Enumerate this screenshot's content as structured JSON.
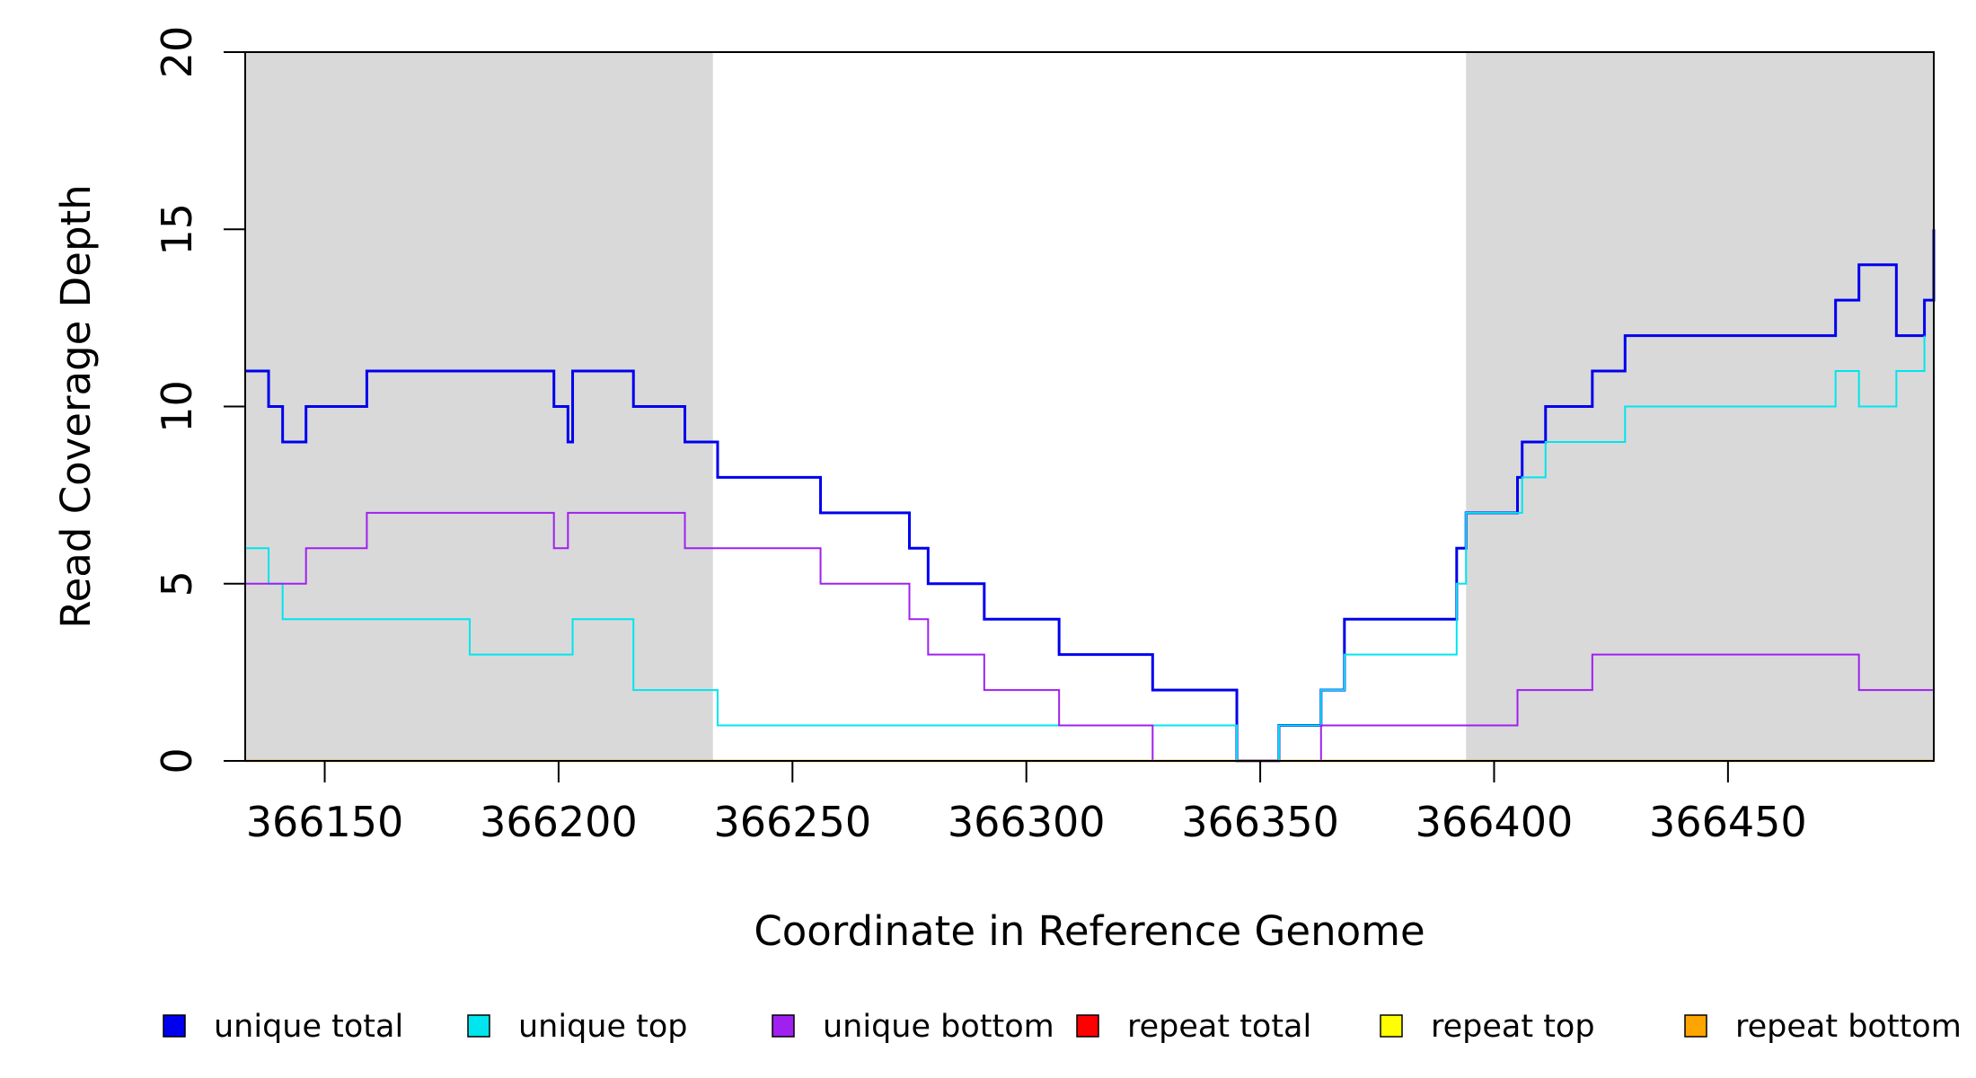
{
  "chart_data": {
    "type": "line",
    "xlabel": "Coordinate in Reference Genome",
    "ylabel": "Read Coverage Depth",
    "xlim": [
      366133,
      366494
    ],
    "ylim": [
      0,
      20
    ],
    "x_ticks": [
      366150,
      366200,
      366250,
      366300,
      366350,
      366400,
      366450
    ],
    "y_ticks": [
      0,
      5,
      10,
      15,
      20
    ],
    "grid": false,
    "shaded_regions": [
      {
        "from": 366133,
        "to": 366233,
        "color": "#d9d9d9"
      },
      {
        "from": 366394,
        "to": 366494,
        "color": "#d9d9d9"
      }
    ],
    "legend_position": "bottom",
    "series": [
      {
        "name": "unique total",
        "color": "#0000ee",
        "x": [
          366133,
          366138,
          366141,
          366146,
          366159,
          366181,
          366199,
          366202,
          366203,
          366216,
          366227,
          366234,
          366256,
          366275,
          366279,
          366291,
          366307,
          366327,
          366345,
          366354,
          366363,
          366368,
          366392,
          366394,
          366405,
          366406,
          366411,
          366421,
          366428,
          366473,
          366478,
          366486,
          366492,
          366494
        ],
        "values": [
          11,
          10,
          9,
          10,
          11,
          11,
          10,
          9,
          11,
          10,
          9,
          8,
          7,
          6,
          5,
          4,
          3,
          2,
          0,
          1,
          2,
          4,
          6,
          7,
          8,
          9,
          10,
          11,
          12,
          13,
          14,
          12,
          13,
          15
        ]
      },
      {
        "name": "unique top",
        "color": "#00e5ee",
        "x": [
          366133,
          366138,
          366141,
          366181,
          366202,
          366203,
          366216,
          366234,
          366327,
          366345,
          366354,
          366363,
          366368,
          366392,
          366394,
          366406,
          366411,
          366428,
          366473,
          366478,
          366486,
          366492
        ],
        "values": [
          6,
          5,
          4,
          3,
          3,
          4,
          2,
          1,
          1,
          0,
          1,
          2,
          3,
          5,
          7,
          8,
          9,
          10,
          11,
          10,
          11,
          12
        ]
      },
      {
        "name": "unique bottom",
        "color": "#a020f0",
        "x": [
          366133,
          366146,
          366159,
          366199,
          366202,
          366227,
          366256,
          366275,
          366279,
          366291,
          366307,
          366327,
          366363,
          366405,
          366421,
          366478,
          366494
        ],
        "values": [
          5,
          6,
          7,
          6,
          7,
          6,
          5,
          4,
          3,
          2,
          1,
          0,
          1,
          2,
          3,
          2,
          2
        ]
      },
      {
        "name": "repeat total",
        "color": "#ff0000",
        "x": [
          366133,
          366494
        ],
        "values": [
          0,
          0
        ]
      },
      {
        "name": "repeat top",
        "color": "#ffff00",
        "x": [
          366133,
          366494
        ],
        "values": [
          0,
          0
        ]
      },
      {
        "name": "repeat bottom",
        "color": "#ffa500",
        "x": [
          366133,
          366494
        ],
        "values": [
          0,
          0
        ]
      }
    ]
  }
}
